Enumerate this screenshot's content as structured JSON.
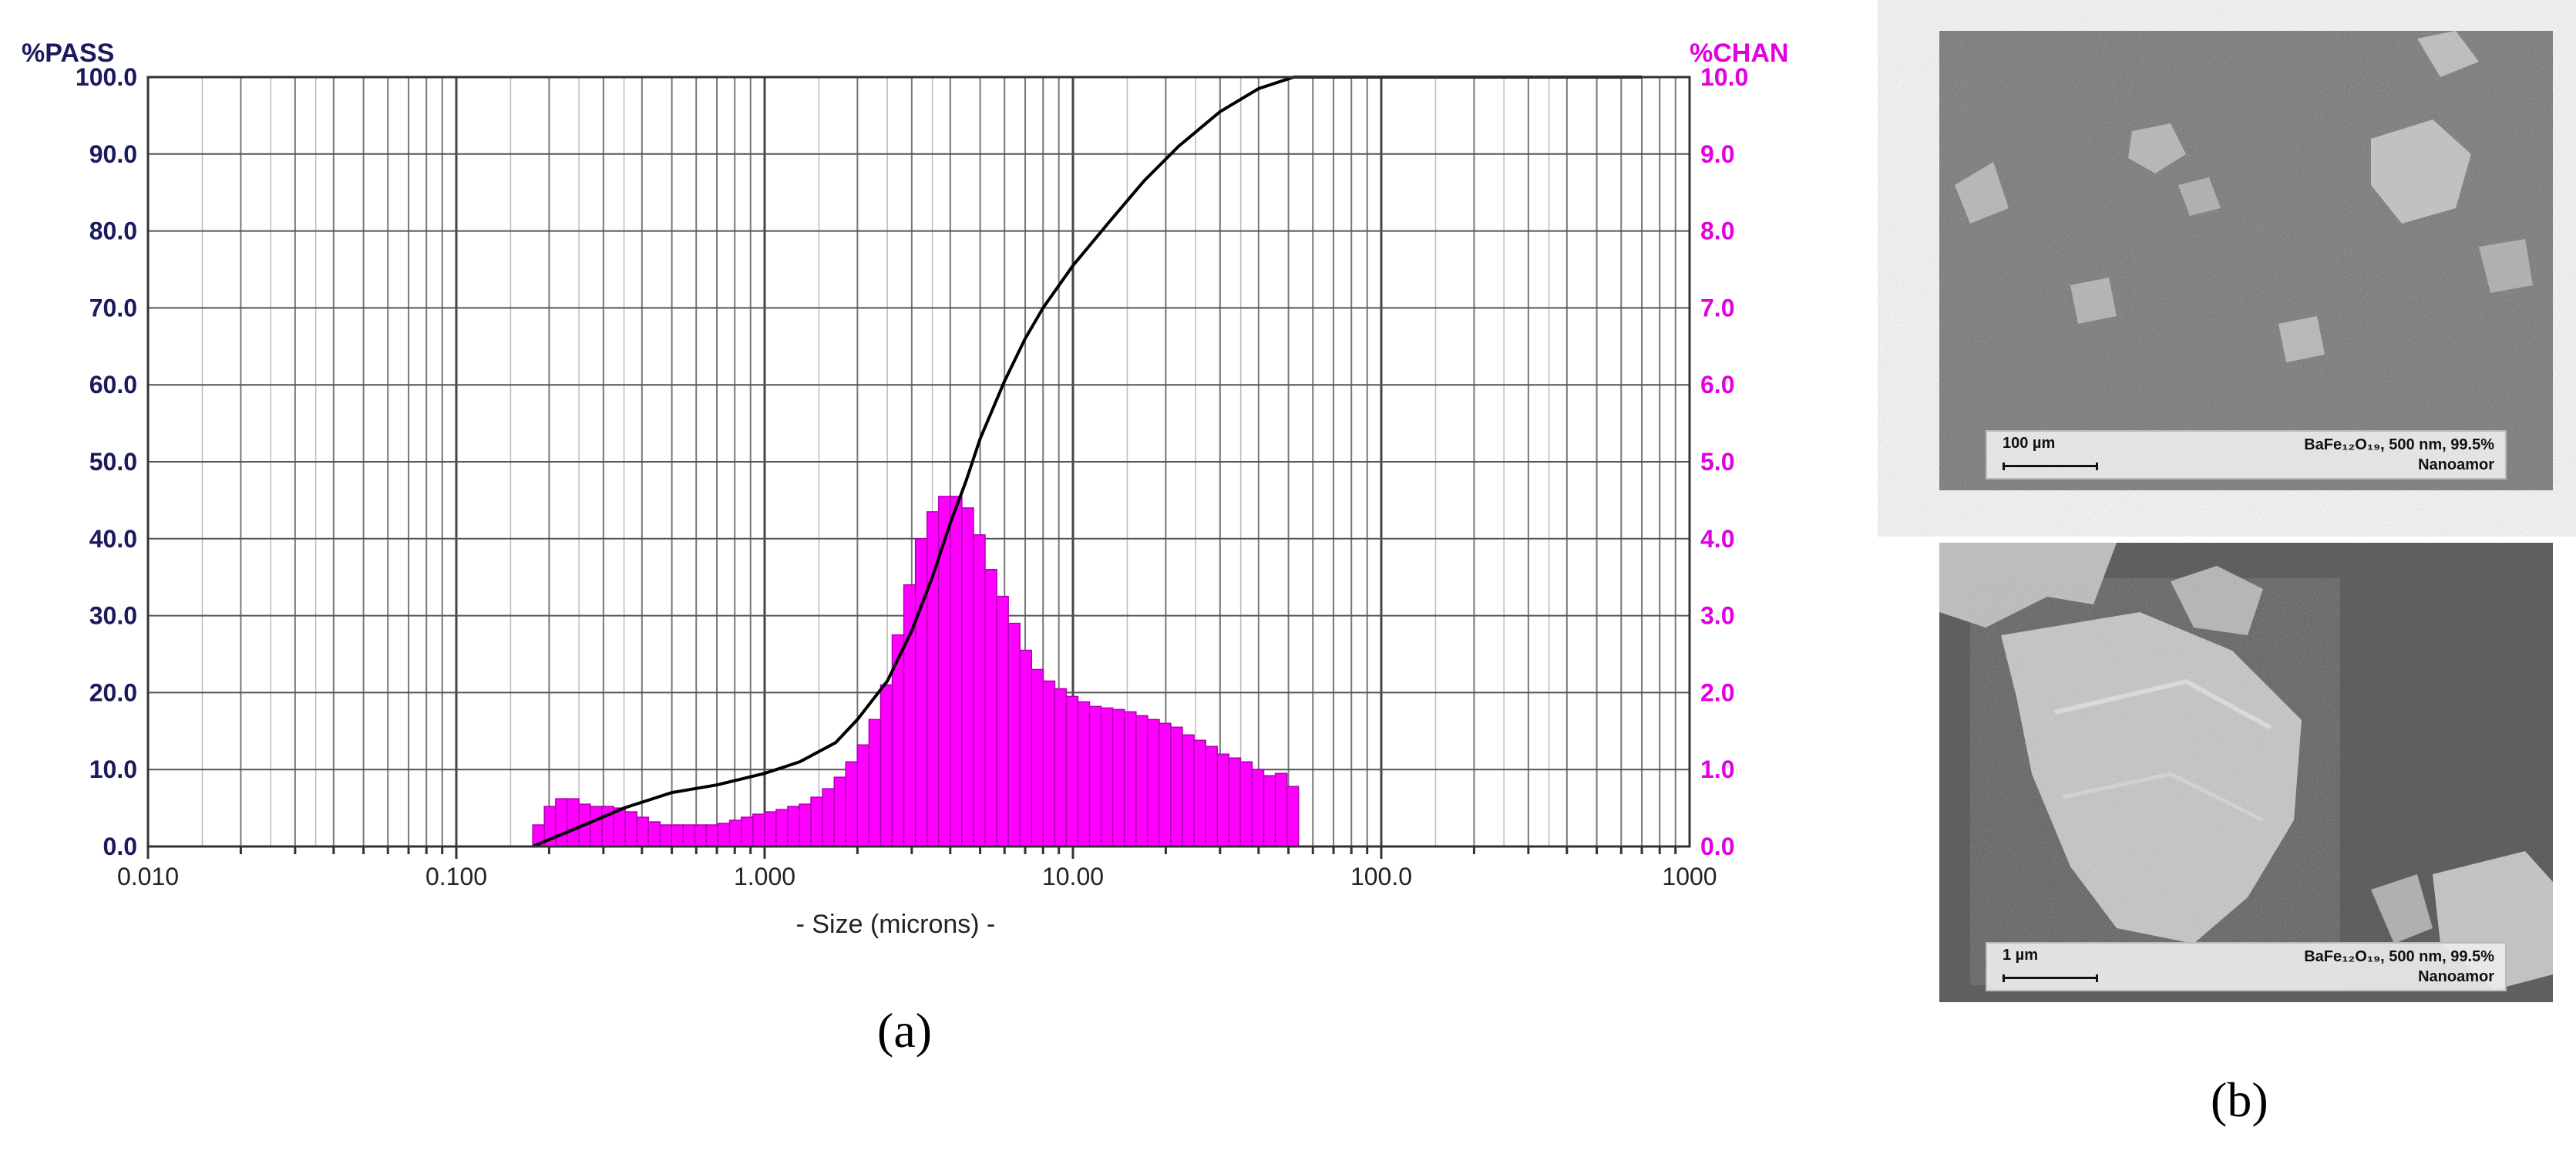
{
  "panel_a_label": "(a)",
  "panel_b_label": "(b)",
  "colors": {
    "histogram": "#ff00ff",
    "curve": "#000000",
    "left_axis_text": "#1a1a5e",
    "right_axis_text": "#e000e0"
  },
  "chart_data": {
    "type": "bar",
    "x_scale": "log",
    "xlabel": "- Size (microns) -",
    "ylabel_left": "%PASS",
    "ylabel_right": "%CHAN",
    "xlim": [
      0.01,
      1000
    ],
    "ylim_left": [
      0,
      100
    ],
    "ylim_right": [
      0,
      10
    ],
    "grid": true,
    "x_tick_labels": [
      {
        "value": 0.01,
        "label": "0.010"
      },
      {
        "value": 0.1,
        "label": "0.100"
      },
      {
        "value": 1,
        "label": "1.000"
      },
      {
        "value": 10,
        "label": "10.00"
      },
      {
        "value": 100,
        "label": "100.0"
      },
      {
        "value": 1000,
        "label": "1000"
      }
    ],
    "y_left_ticks": [
      "0.0",
      "10.0",
      "20.0",
      "30.0",
      "40.0",
      "50.0",
      "60.0",
      "70.0",
      "80.0",
      "90.0",
      "100.0"
    ],
    "y_right_ticks": [
      "0.0",
      "1.0",
      "2.0",
      "3.0",
      "4.0",
      "5.0",
      "6.0",
      "7.0",
      "8.0",
      "9.0",
      "10.0"
    ],
    "series": [
      {
        "name": "%CHAN",
        "kind": "histogram",
        "bin_edges": [
          0.177,
          0.193,
          0.21,
          0.229,
          0.25,
          0.272,
          0.297,
          0.324,
          0.353,
          0.385,
          0.42,
          0.458,
          0.499,
          0.544,
          0.594,
          0.647,
          0.706,
          0.77,
          0.84,
          0.916,
          0.999,
          1.09,
          1.188,
          1.296,
          1.413,
          1.541,
          1.681,
          1.833,
          1.999,
          2.18,
          2.378,
          2.593,
          2.828,
          3.084,
          3.364,
          3.668,
          4.001,
          4.363,
          4.758,
          5.189,
          5.659,
          6.172,
          6.731,
          7.34,
          8.005,
          8.73,
          9.521,
          10.38,
          11.32,
          12.35,
          13.46,
          14.69,
          16.02,
          17.47,
          19.05,
          20.77,
          22.65,
          24.71,
          26.95,
          29.39,
          32.05,
          34.95,
          38.11,
          41.57,
          45.33,
          49.44,
          53.92
        ],
        "values": [
          0.28,
          0.52,
          0.62,
          0.62,
          0.55,
          0.52,
          0.52,
          0.5,
          0.45,
          0.38,
          0.32,
          0.28,
          0.28,
          0.28,
          0.28,
          0.28,
          0.3,
          0.34,
          0.38,
          0.42,
          0.45,
          0.48,
          0.52,
          0.55,
          0.64,
          0.75,
          0.9,
          1.1,
          1.32,
          1.65,
          2.1,
          2.75,
          3.4,
          4.0,
          4.35,
          4.55,
          4.55,
          4.4,
          4.05,
          3.6,
          3.25,
          2.9,
          2.55,
          2.3,
          2.15,
          2.05,
          1.95,
          1.88,
          1.82,
          1.8,
          1.78,
          1.75,
          1.7,
          1.65,
          1.6,
          1.55,
          1.45,
          1.38,
          1.3,
          1.2,
          1.15,
          1.1,
          1.0,
          0.92,
          0.95,
          0.78
        ]
      },
      {
        "name": "%PASS",
        "kind": "cumulative line",
        "x": [
          0.177,
          0.25,
          0.35,
          0.5,
          0.7,
          1.0,
          1.3,
          1.7,
          2.0,
          2.5,
          3.0,
          3.5,
          4.0,
          4.5,
          5.0,
          6.0,
          7.0,
          8.0,
          10.0,
          13.0,
          17.0,
          22.0,
          30.0,
          40.0,
          52.0,
          700
        ],
        "y": [
          0,
          2.5,
          5.0,
          7.0,
          8.0,
          9.5,
          11.0,
          13.5,
          16.5,
          21.5,
          28.0,
          35.0,
          42.0,
          47.5,
          53.0,
          60.5,
          66.0,
          70.0,
          75.5,
          81.0,
          86.5,
          91.0,
          95.5,
          98.5,
          100,
          100
        ]
      }
    ]
  },
  "sem_images": [
    {
      "scale_label": "100 µm",
      "material": "BaFe₁₂O₁₉, 500 nm, 99.5%",
      "supplier": "Nanoamor"
    },
    {
      "scale_label": "1 µm",
      "material": "BaFe₁₂O₁₉, 500 nm, 99.5%",
      "supplier": "Nanoamor"
    }
  ]
}
